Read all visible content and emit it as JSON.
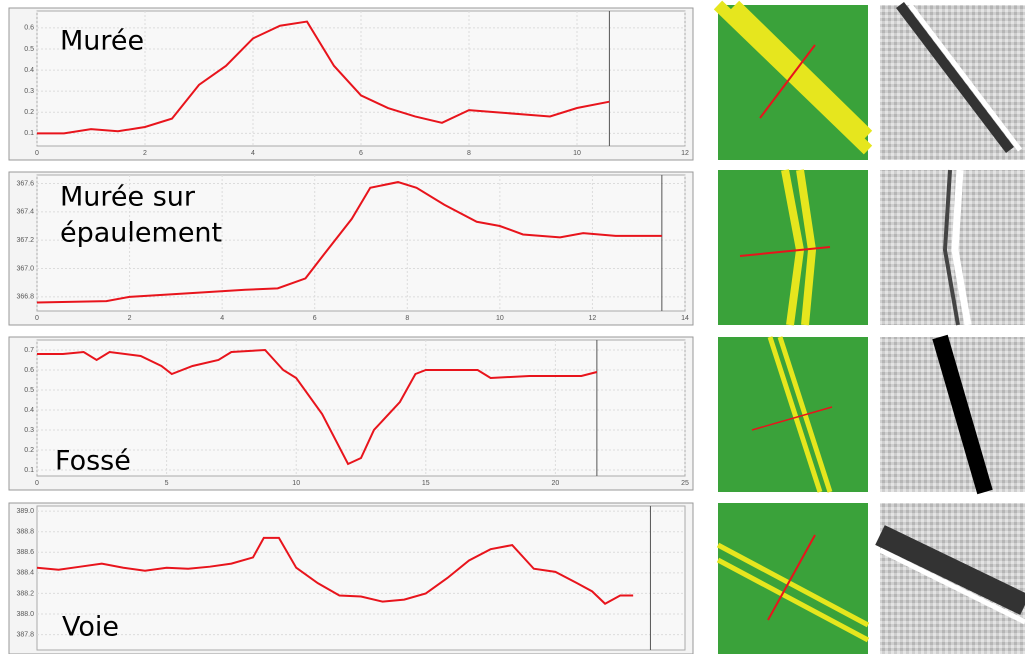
{
  "chart_data": [
    {
      "type": "line",
      "title_lines": [
        "Murée"
      ],
      "x": [
        0,
        0.5,
        1,
        1.5,
        2,
        2.5,
        3,
        3.5,
        4,
        4.5,
        5,
        5.5,
        6,
        6.5,
        7,
        7.5,
        8,
        8.5,
        9,
        9.5,
        10,
        10.6
      ],
      "series": [
        {
          "color": "#e8141c",
          "values": [
            0.1,
            0.1,
            0.12,
            0.11,
            0.13,
            0.17,
            0.33,
            0.42,
            0.55,
            0.61,
            0.63,
            0.42,
            0.28,
            0.22,
            0.18,
            0.15,
            0.21,
            0.2,
            0.19,
            0.18,
            0.22,
            0.25
          ]
        }
      ],
      "xlim": [
        0,
        12
      ],
      "xticks": [
        0,
        2,
        4,
        6,
        8,
        10,
        12
      ],
      "ylim": [
        0.04,
        0.68
      ],
      "yticks": [
        0.1,
        0.2,
        0.3,
        0.4,
        0.5,
        0.6
      ],
      "grid": true,
      "cursor_x": 10.6
    },
    {
      "type": "line",
      "title_lines": [
        "Murée sur",
        "épaulement"
      ],
      "x": [
        0,
        1.5,
        2,
        3.5,
        4.5,
        5.2,
        5.8,
        6.2,
        6.8,
        7.2,
        7.8,
        8.2,
        8.8,
        9.5,
        10,
        10.5,
        11.3,
        11.8,
        12.5,
        13.5
      ],
      "series": [
        {
          "color": "#e8141c",
          "values": [
            366.76,
            366.77,
            366.8,
            366.83,
            366.85,
            366.86,
            366.93,
            367.1,
            367.35,
            367.57,
            367.61,
            367.57,
            367.45,
            367.33,
            367.3,
            367.24,
            367.22,
            367.25,
            367.23,
            367.23
          ]
        }
      ],
      "xlim": [
        0,
        14
      ],
      "xticks": [
        0,
        2,
        4,
        6,
        8,
        10,
        12,
        14
      ],
      "ylim": [
        366.7,
        367.66
      ],
      "yticks": [
        366.8,
        {
          "value": 367,
          "label": "367.0"
        },
        367.2,
        367.4,
        367.6
      ],
      "grid": true,
      "cursor_x": 13.5
    },
    {
      "type": "line",
      "title_lines": [
        "Fossé"
      ],
      "x": [
        0,
        1,
        1.8,
        2.3,
        2.8,
        4,
        4.8,
        5.2,
        6,
        7,
        7.5,
        8.8,
        9.5,
        10,
        11,
        12,
        12.5,
        13,
        14,
        14.6,
        15,
        17,
        17.5,
        19,
        20,
        21,
        21.6
      ],
      "series": [
        {
          "color": "#e8141c",
          "values": [
            0.68,
            0.68,
            0.69,
            0.65,
            0.69,
            0.67,
            0.62,
            0.58,
            0.62,
            0.65,
            0.69,
            0.7,
            0.6,
            0.56,
            0.38,
            0.13,
            0.16,
            0.3,
            0.44,
            0.58,
            0.6,
            0.6,
            0.56,
            0.57,
            0.57,
            0.57,
            0.59
          ]
        }
      ],
      "xlim": [
        0,
        25
      ],
      "xticks": [
        0,
        5,
        10,
        15,
        20,
        25
      ],
      "ylim": [
        0.07,
        0.75
      ],
      "yticks": [
        0.1,
        0.2,
        0.3,
        0.4,
        0.5,
        0.6,
        0.7
      ],
      "grid": true,
      "cursor_x": 21.6
    },
    {
      "type": "line",
      "title_lines": [
        "Voie"
      ],
      "x": [
        0,
        1,
        2,
        3,
        4,
        5,
        6,
        7,
        8,
        9,
        10,
        10.5,
        11.2,
        12,
        13,
        14,
        15,
        16,
        17,
        18,
        19,
        20,
        21,
        22,
        23,
        24,
        25,
        25.7,
        26.3,
        27,
        27.6
      ],
      "series": [
        {
          "color": "#e8141c",
          "values": [
            388.45,
            388.43,
            388.46,
            388.49,
            388.45,
            388.42,
            388.45,
            388.44,
            388.46,
            388.49,
            388.55,
            388.74,
            388.74,
            388.45,
            388.3,
            388.18,
            388.17,
            388.12,
            388.14,
            388.2,
            388.35,
            388.52,
            388.63,
            388.67,
            388.44,
            388.41,
            388.3,
            388.22,
            388.1,
            388.18,
            388.18
          ]
        }
      ],
      "xlim": [
        0,
        30
      ],
      "ylim": [
        387.65,
        389.05
      ],
      "yticks": [
        387.8,
        {
          "value": 388,
          "label": "388.0"
        },
        388.2,
        388.4,
        388.6,
        388.8,
        {
          "value": 389,
          "label": "389.0"
        }
      ],
      "grid": true,
      "cursor_x": 28.4
    }
  ]
}
